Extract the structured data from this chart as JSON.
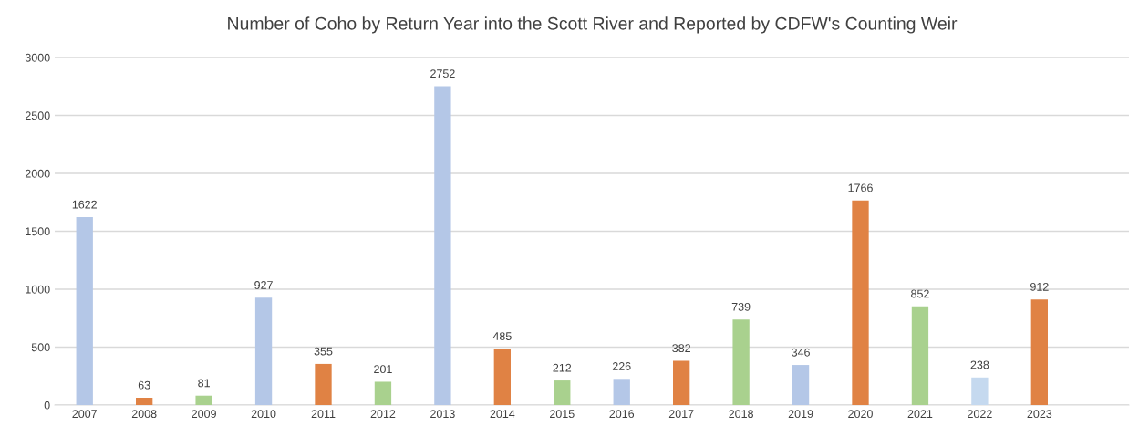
{
  "chart_data": {
    "type": "bar",
    "title": "Number of Coho by Return Year into the Scott River and Reported by CDFW's Counting Weir",
    "categories": [
      "2007",
      "2008",
      "2009",
      "2010",
      "2011",
      "2012",
      "2013",
      "2014",
      "2015",
      "2016",
      "2017",
      "2018",
      "2019",
      "2020",
      "2021",
      "2022",
      "2023",
      null
    ],
    "values": [
      1622,
      63,
      81,
      927,
      355,
      201,
      2752,
      485,
      212,
      226,
      382,
      739,
      346,
      1766,
      852,
      238,
      912,
      null
    ],
    "colors": [
      "#b4c7e7",
      "#e08244",
      "#a9d18e",
      "#b4c7e7",
      "#e08244",
      "#a9d18e",
      "#b4c7e7",
      "#e08244",
      "#a9d18e",
      "#b4c7e7",
      "#e08244",
      "#a9d18e",
      "#b4c7e7",
      "#e08244",
      "#a9d18e",
      "#c5d9ef",
      "#e08244",
      null
    ],
    "ylim": [
      0,
      3000
    ],
    "yticks": [
      0,
      500,
      1000,
      1500,
      2000,
      2500,
      3000
    ],
    "grid": "y",
    "data_labels": true
  }
}
